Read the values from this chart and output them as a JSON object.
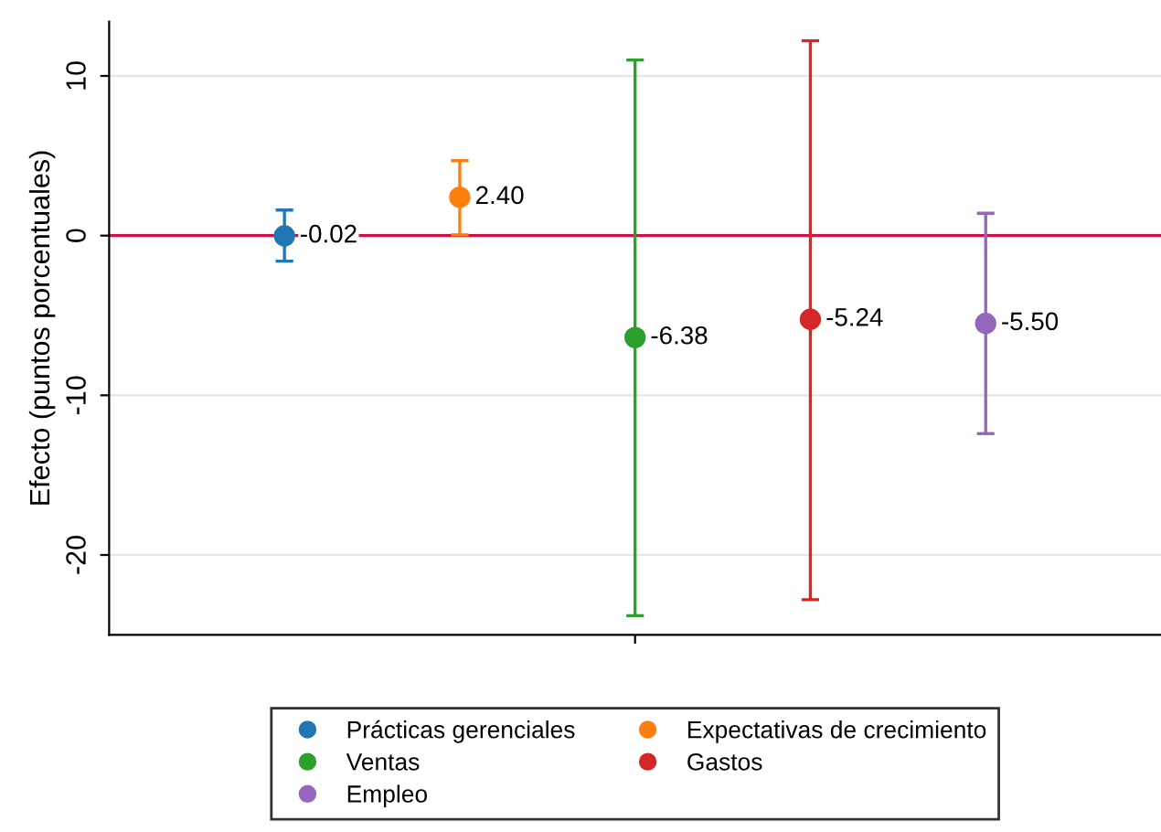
{
  "chart_data": {
    "type": "scatter",
    "ylabel": "Efecto (puntos porcentuales)",
    "categories": [
      null,
      null,
      null,
      null,
      null
    ],
    "series": [
      {
        "name": "Prácticas gerenciales",
        "color": "#1f77b4",
        "values": [
          -0.02,
          null,
          null,
          null,
          null
        ],
        "errors": [
          [
            -1.6,
            1.6
          ],
          null,
          null,
          null,
          null
        ],
        "value_labels": [
          "-0.02",
          null,
          null,
          null,
          null
        ]
      },
      {
        "name": "Expectativas de crecimiento",
        "color": "#ff7f0e",
        "values": [
          null,
          2.4,
          null,
          null,
          null
        ],
        "errors": [
          null,
          [
            0.05,
            4.7
          ],
          null,
          null,
          null
        ],
        "value_labels": [
          null,
          "2.40",
          null,
          null,
          null
        ]
      },
      {
        "name": "Ventas",
        "color": "#2ca02c",
        "values": [
          null,
          null,
          -6.38,
          null,
          null
        ],
        "errors": [
          null,
          null,
          [
            -23.8,
            11.0
          ],
          null,
          null
        ],
        "value_labels": [
          null,
          null,
          "-6.38",
          null,
          null
        ]
      },
      {
        "name": "Gastos",
        "color": "#d62728",
        "values": [
          null,
          null,
          null,
          -5.24,
          null
        ],
        "errors": [
          null,
          null,
          null,
          [
            -22.8,
            12.2
          ],
          null
        ],
        "value_labels": [
          null,
          null,
          null,
          "-5.24",
          null
        ]
      },
      {
        "name": "Empleo",
        "color": "#9467bd",
        "values": [
          null,
          null,
          null,
          null,
          -5.5
        ],
        "errors": [
          null,
          null,
          null,
          null,
          [
            -12.4,
            1.4
          ]
        ],
        "value_labels": [
          null,
          null,
          null,
          null,
          "-5.50"
        ]
      }
    ],
    "ylim": [
      -25,
      13.4
    ],
    "yticks": [
      -20,
      -10,
      0,
      10
    ],
    "grid": "y",
    "legend": "bottom",
    "marker": "circle",
    "ref_lines": [
      {
        "axis": "y",
        "value": 0,
        "label": null,
        "color": "#d0104c"
      }
    ]
  }
}
